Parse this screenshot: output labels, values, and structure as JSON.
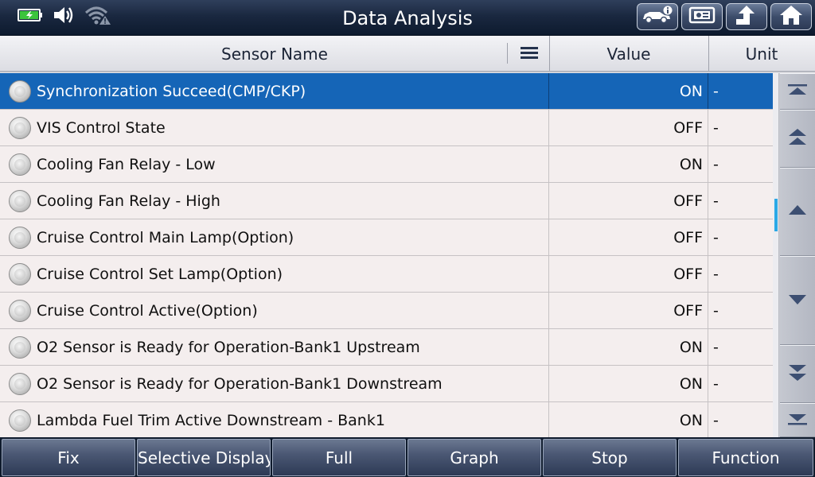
{
  "header": {
    "title": "Data Analysis",
    "top_buttons": [
      {
        "icon": "vehicle-info-icon"
      },
      {
        "icon": "print-screen-icon"
      },
      {
        "icon": "back-icon"
      },
      {
        "icon": "home-icon"
      }
    ],
    "status_icons": [
      "battery-charging-icon",
      "volume-icon",
      "wifi-warning-icon"
    ]
  },
  "table": {
    "columns": {
      "name": "Sensor Name",
      "value": "Value",
      "unit": "Unit"
    },
    "rows": [
      {
        "name": "Synchronization Succeed(CMP/CKP)",
        "value": "ON",
        "unit": "-",
        "selected": true
      },
      {
        "name": "VIS Control State",
        "value": "OFF",
        "unit": "-"
      },
      {
        "name": "Cooling Fan Relay - Low",
        "value": "ON",
        "unit": "-"
      },
      {
        "name": "Cooling Fan Relay - High",
        "value": "OFF",
        "unit": "-"
      },
      {
        "name": "Cruise Control Main Lamp(Option)",
        "value": "OFF",
        "unit": "-"
      },
      {
        "name": "Cruise Control Set Lamp(Option)",
        "value": "OFF",
        "unit": "-"
      },
      {
        "name": "Cruise Control Active(Option)",
        "value": "OFF",
        "unit": "-"
      },
      {
        "name": "O2 Sensor is Ready for Operation-Bank1 Upstream",
        "value": "ON",
        "unit": "-"
      },
      {
        "name": "O2 Sensor is Ready for Operation-Bank1 Downstream",
        "value": "ON",
        "unit": "-"
      },
      {
        "name": "Lambda Fuel Trim Active Downstream - Bank1",
        "value": "ON",
        "unit": "-"
      }
    ]
  },
  "scroll": {
    "buttons": [
      "scroll-top-icon",
      "page-up-icon",
      "line-up-icon",
      "line-down-icon",
      "page-down-icon",
      "scroll-bottom-icon"
    ],
    "position_fraction": 0.38,
    "visible_fraction": 0.09
  },
  "footer": {
    "buttons": [
      "Fix",
      "Selective Display",
      "Full",
      "Graph",
      "Stop",
      "Function"
    ]
  },
  "colors": {
    "selected_row": "#1565b7",
    "topbar": "#1a2840",
    "scroll_thumb": "#2aa8e6"
  }
}
